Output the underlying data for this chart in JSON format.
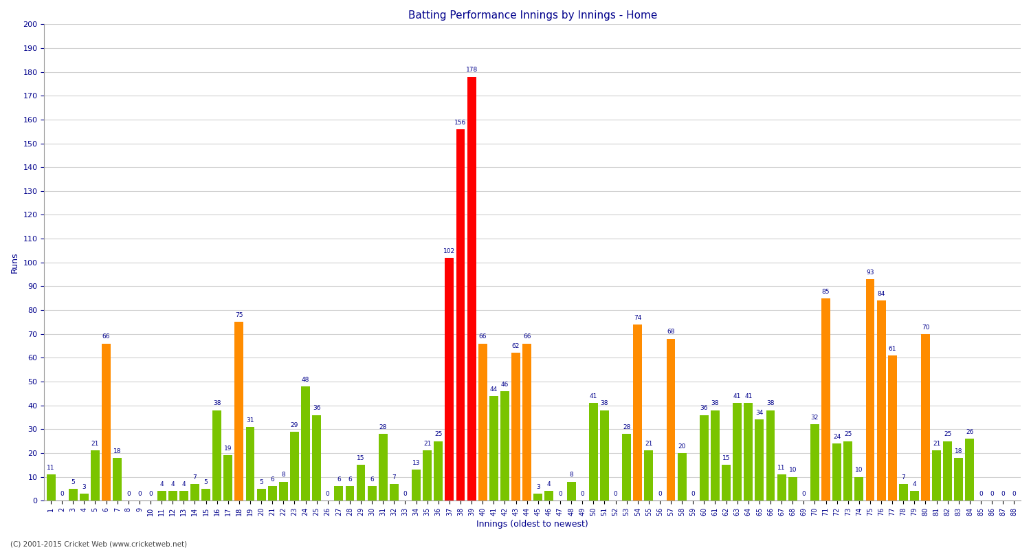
{
  "title": "Batting Performance Innings by Innings - Home",
  "xlabel": "Innings (oldest to newest)",
  "ylabel": "Runs",
  "copyright": "(C) 2001-2015 Cricket Web (www.cricketweb.net)",
  "innings_data": [
    [
      1,
      11,
      "green"
    ],
    [
      2,
      0,
      "green"
    ],
    [
      3,
      5,
      "green"
    ],
    [
      4,
      3,
      "green"
    ],
    [
      5,
      21,
      "green"
    ],
    [
      6,
      66,
      "orange"
    ],
    [
      7,
      18,
      "green"
    ],
    [
      8,
      0,
      "green"
    ],
    [
      9,
      0,
      "green"
    ],
    [
      10,
      0,
      "green"
    ],
    [
      11,
      4,
      "green"
    ],
    [
      12,
      4,
      "green"
    ],
    [
      13,
      4,
      "green"
    ],
    [
      14,
      7,
      "green"
    ],
    [
      15,
      5,
      "green"
    ],
    [
      16,
      38,
      "green"
    ],
    [
      17,
      19,
      "green"
    ],
    [
      18,
      75,
      "orange"
    ],
    [
      19,
      31,
      "green"
    ],
    [
      20,
      5,
      "green"
    ],
    [
      21,
      6,
      "green"
    ],
    [
      22,
      8,
      "green"
    ],
    [
      23,
      29,
      "green"
    ],
    [
      24,
      48,
      "green"
    ],
    [
      25,
      36,
      "green"
    ],
    [
      26,
      0,
      "green"
    ],
    [
      27,
      6,
      "green"
    ],
    [
      28,
      6,
      "green"
    ],
    [
      29,
      15,
      "green"
    ],
    [
      30,
      6,
      "green"
    ],
    [
      31,
      28,
      "green"
    ],
    [
      32,
      7,
      "green"
    ],
    [
      33,
      0,
      "green"
    ],
    [
      34,
      13,
      "green"
    ],
    [
      35,
      21,
      "green"
    ],
    [
      36,
      25,
      "green"
    ],
    [
      37,
      102,
      "red"
    ],
    [
      38,
      156,
      "red"
    ],
    [
      39,
      178,
      "red"
    ],
    [
      40,
      66,
      "orange"
    ],
    [
      41,
      44,
      "green"
    ],
    [
      42,
      46,
      "green"
    ],
    [
      43,
      62,
      "orange"
    ],
    [
      44,
      66,
      "orange"
    ],
    [
      45,
      3,
      "green"
    ],
    [
      46,
      4,
      "green"
    ],
    [
      47,
      0,
      "green"
    ],
    [
      48,
      8,
      "green"
    ],
    [
      49,
      0,
      "green"
    ],
    [
      50,
      41,
      "green"
    ],
    [
      51,
      38,
      "green"
    ],
    [
      52,
      0,
      "green"
    ],
    [
      53,
      28,
      "green"
    ],
    [
      54,
      74,
      "orange"
    ],
    [
      55,
      21,
      "green"
    ],
    [
      56,
      0,
      "green"
    ],
    [
      57,
      68,
      "orange"
    ],
    [
      58,
      20,
      "green"
    ],
    [
      59,
      0,
      "green"
    ],
    [
      60,
      36,
      "green"
    ],
    [
      61,
      38,
      "green"
    ],
    [
      62,
      15,
      "green"
    ],
    [
      63,
      41,
      "green"
    ],
    [
      64,
      41,
      "green"
    ],
    [
      65,
      34,
      "green"
    ],
    [
      66,
      38,
      "green"
    ],
    [
      67,
      11,
      "green"
    ],
    [
      68,
      10,
      "green"
    ],
    [
      69,
      0,
      "green"
    ],
    [
      70,
      32,
      "green"
    ],
    [
      71,
      85,
      "orange"
    ],
    [
      72,
      24,
      "green"
    ],
    [
      73,
      25,
      "green"
    ],
    [
      74,
      10,
      "green"
    ],
    [
      75,
      93,
      "orange"
    ],
    [
      76,
      84,
      "orange"
    ],
    [
      77,
      61,
      "orange"
    ],
    [
      78,
      7,
      "green"
    ],
    [
      79,
      4,
      "green"
    ],
    [
      80,
      70,
      "orange"
    ],
    [
      81,
      21,
      "green"
    ],
    [
      82,
      25,
      "green"
    ],
    [
      83,
      18,
      "green"
    ],
    [
      84,
      26,
      "green"
    ],
    [
      85,
      0,
      "green"
    ],
    [
      86,
      0,
      "green"
    ],
    [
      87,
      0,
      "green"
    ],
    [
      88,
      0,
      "green"
    ]
  ],
  "color_map": {
    "green": "#7ac400",
    "orange": "#ff8c00",
    "red": "#ff0000"
  },
  "ylim": [
    0,
    200
  ],
  "ytick_step": 10,
  "background_color": "#ffffff",
  "grid_color": "#d0d0d0",
  "value_color": "#00008b",
  "axis_color": "#00008b",
  "title_fontsize": 11,
  "label_fontsize": 9,
  "tick_fontsize": 7,
  "bar_label_fontsize": 6.5
}
